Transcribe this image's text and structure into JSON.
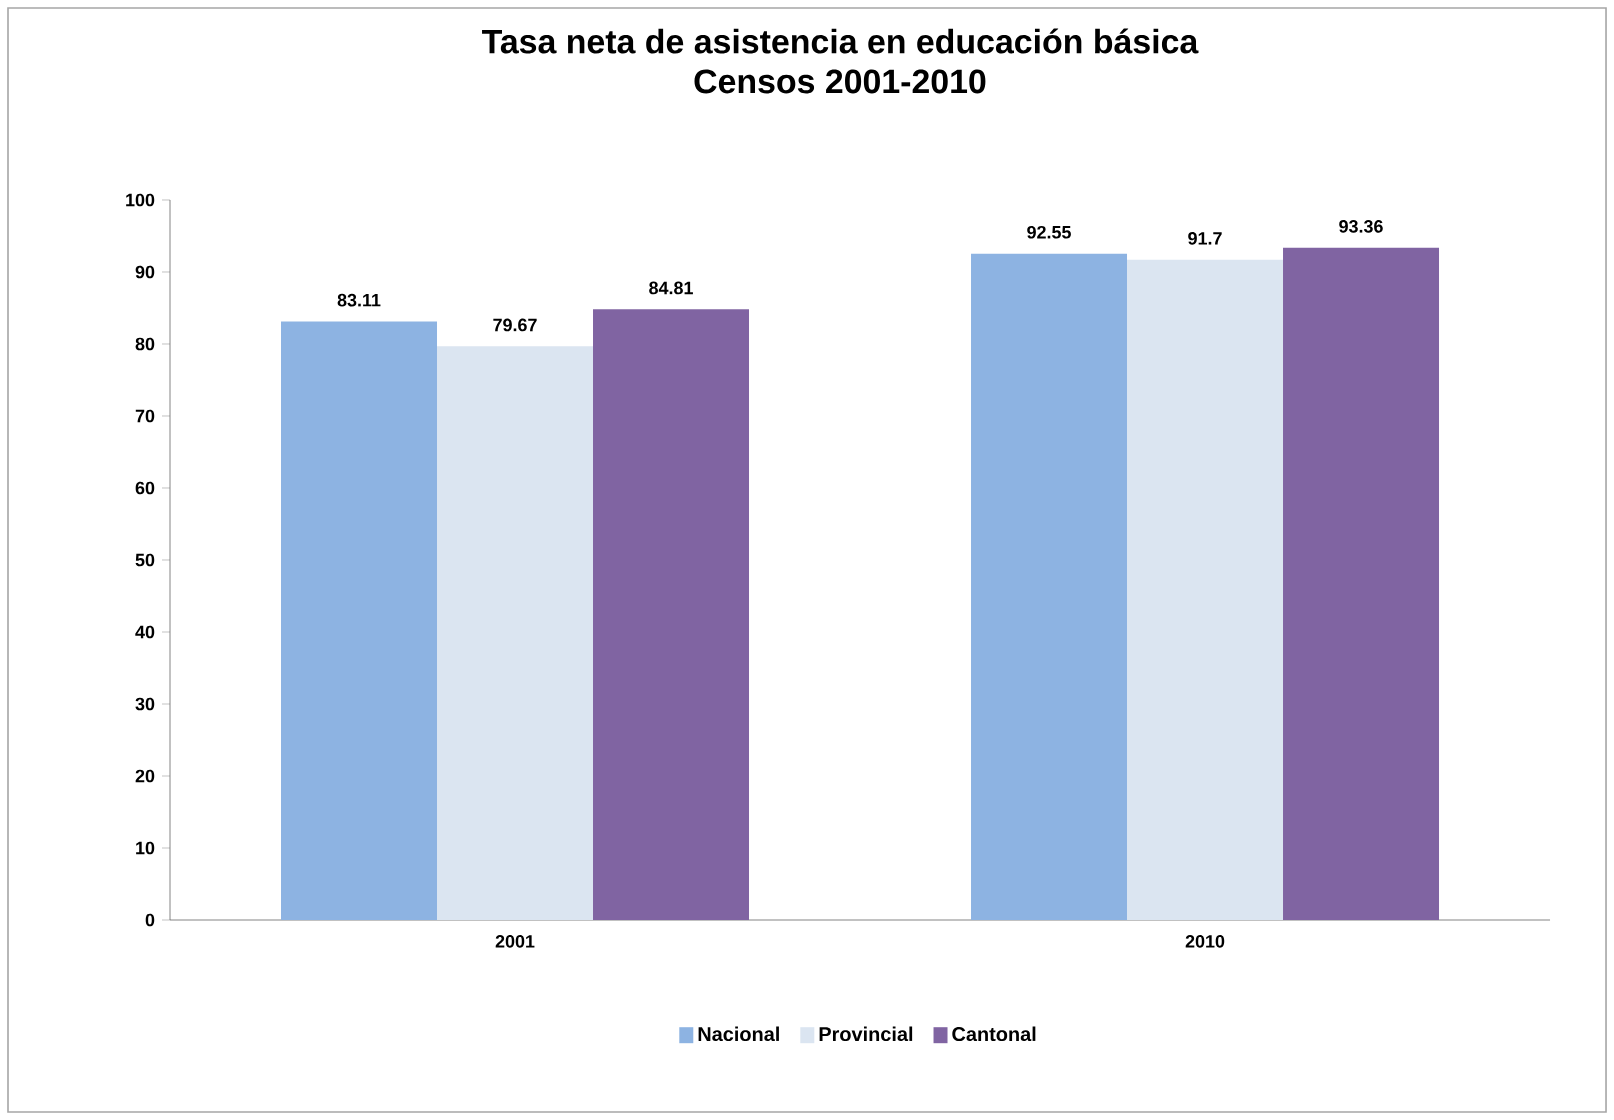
{
  "chart_data": {
    "type": "bar",
    "title": "Tasa neta de asistencia en educación básica\nCensos 2001-2010",
    "categories": [
      "2001",
      "2010"
    ],
    "series": [
      {
        "name": "Nacional",
        "color": "#8db3e2",
        "values": [
          83.11,
          92.55
        ]
      },
      {
        "name": "Provincial",
        "color": "#dbe5f1",
        "values": [
          79.67,
          91.7
        ]
      },
      {
        "name": "Cantonal",
        "color": "#8064a2",
        "values": [
          84.81,
          93.36
        ]
      }
    ],
    "ylim": [
      0,
      100
    ],
    "yticks": [
      0,
      10,
      20,
      30,
      40,
      50,
      60,
      70,
      80,
      90,
      100
    ],
    "data_labels": true,
    "legend": "bottom",
    "grid": false
  }
}
